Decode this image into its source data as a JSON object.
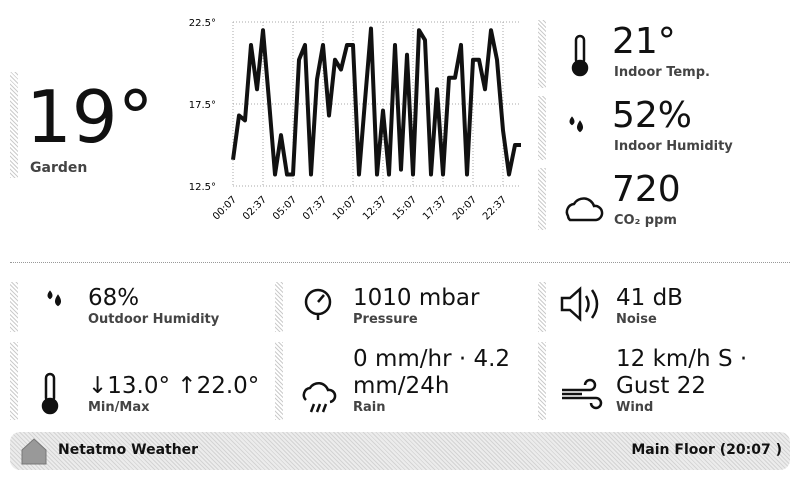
{
  "current": {
    "value": "19°",
    "label": "Garden"
  },
  "chart_data": {
    "type": "line",
    "categories": [
      "00:07",
      null,
      null,
      null,
      null,
      "02:37",
      null,
      null,
      null,
      null,
      "05:07",
      null,
      null,
      null,
      null,
      "07:37",
      null,
      null,
      null,
      null,
      "10:07",
      null,
      null,
      null,
      null,
      "12:37",
      null,
      null,
      null,
      null,
      "15:07",
      null,
      null,
      null,
      null,
      "17:37",
      null,
      null,
      null,
      null,
      "20:07",
      null,
      null,
      null,
      null,
      "22:37",
      null,
      null,
      null
    ],
    "values": [
      14.1,
      16.8,
      16.5,
      21.1,
      18.4,
      22.0,
      17.7,
      13.2,
      15.6,
      13.2,
      13.2,
      20.2,
      21.1,
      13.2,
      19.0,
      21.1,
      16.8,
      20.2,
      19.6,
      21.1,
      21.1,
      13.2,
      17.7,
      22.1,
      13.2,
      17.1,
      13.2,
      21.1,
      13.5,
      20.5,
      13.2,
      22.0,
      21.4,
      13.2,
      18.4,
      13.2,
      19.1,
      19.1,
      21.1,
      13.2,
      20.2,
      20.2,
      18.4,
      22.0,
      20.2,
      15.9,
      13.2,
      15.0,
      15.0
    ],
    "color": "#111111",
    "ylim": [
      12.5,
      22.5
    ],
    "yticks": [
      {
        "value": 12.5,
        "label": "12.5°"
      },
      {
        "value": 17.5,
        "label": "17.5°"
      },
      {
        "value": 22.5,
        "label": "22.5°"
      }
    ],
    "grid": true
  },
  "indoor": [
    {
      "value": "21°",
      "label": "Indoor Temp."
    },
    {
      "value": "52%",
      "label": "Indoor Humidity"
    },
    {
      "value": "720",
      "label": "CO₂ ppm"
    }
  ],
  "tiles": [
    {
      "value": "68%",
      "label": "Outdoor Humidity"
    },
    {
      "value": "1010 mbar",
      "label": "Pressure"
    },
    {
      "value": "41 dB",
      "label": "Noise"
    },
    {
      "value": "↓13.0° ↑22.0°",
      "label": "Min/Max"
    },
    {
      "value": "0 mm/hr · 4.2 mm/24h",
      "label": "Rain"
    },
    {
      "value": "12 km/h S · Gust 22",
      "label": "Wind"
    }
  ],
  "footer": {
    "title": "Netatmo Weather",
    "status": "Main Floor (20:07 )"
  }
}
